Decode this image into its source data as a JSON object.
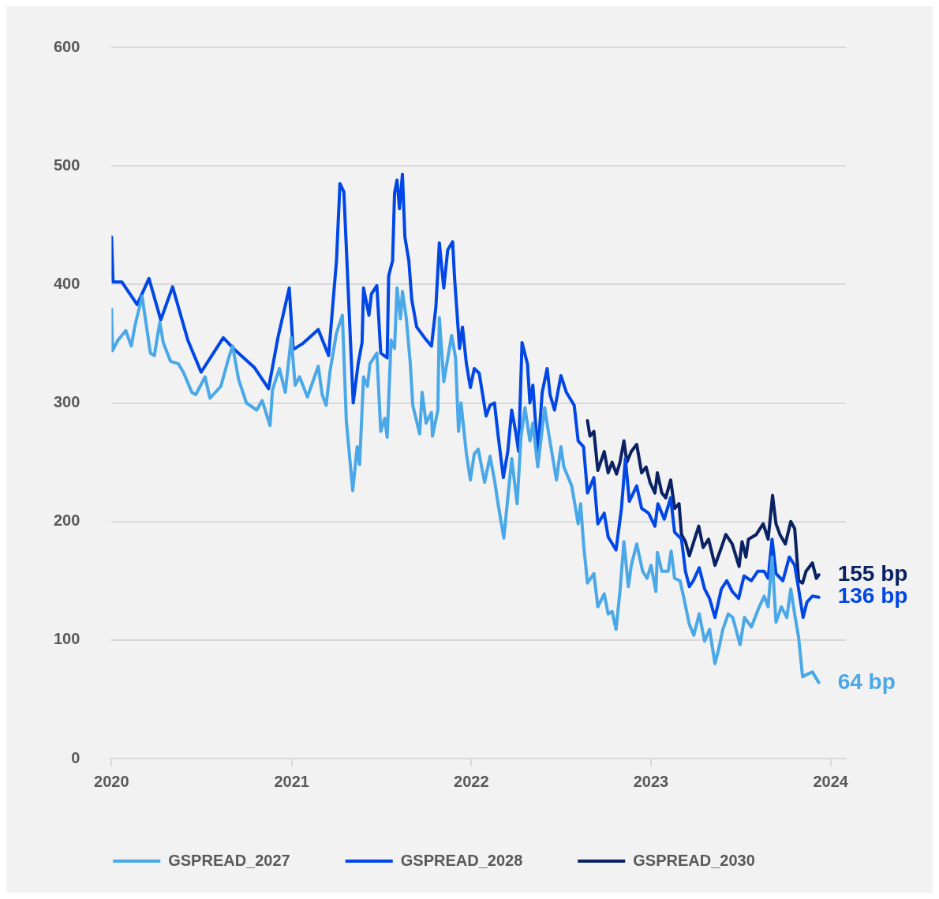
{
  "chart_data": {
    "type": "line",
    "xlim": [
      "2020-01-01",
      "2024-02-01"
    ],
    "xticks": [
      "2020",
      "2021",
      "2022",
      "2023",
      "2024"
    ],
    "ylim": [
      0,
      600
    ],
    "yticks": [
      0,
      100,
      200,
      300,
      400,
      500,
      600
    ],
    "grid": "y",
    "legend": "bottom",
    "marker": "none",
    "line_style": "solid",
    "annotations": [
      {
        "text": "155 bp",
        "x": "2023-12-08",
        "y": 155
      },
      {
        "text": "136 bp",
        "x": "2023-12-08",
        "y": 136
      },
      {
        "text": "64 bp",
        "x": "2023-12-08",
        "y": 64
      }
    ],
    "series": [
      {
        "name": "GSPREAD_2027",
        "color": "#4aa8e8",
        "x": [
          "2020-01-01",
          "2020-01-03",
          "2020-01-14",
          "2020-01-30",
          "2020-02-10",
          "2020-02-18",
          "2020-03-03",
          "2020-03-20",
          "2020-03-28",
          "2020-04-08",
          "2020-04-15",
          "2020-04-30",
          "2020-05-16",
          "2020-05-27",
          "2020-06-12",
          "2020-06-20",
          "2020-07-09",
          "2020-07-19",
          "2020-08-10",
          "2020-08-26",
          "2020-09-03",
          "2020-09-15",
          "2020-10-01",
          "2020-10-22",
          "2020-11-02",
          "2020-11-18",
          "2020-11-23",
          "2020-12-07",
          "2020-12-19",
          "2020-12-31",
          "2021-01-08",
          "2021-01-17",
          "2021-02-02",
          "2021-02-24",
          "2021-03-04",
          "2021-03-12",
          "2021-03-20",
          "2021-04-02",
          "2021-04-14",
          "2021-04-22",
          "2021-05-05",
          "2021-05-14",
          "2021-05-19",
          "2021-05-27",
          "2021-06-04",
          "2021-06-09",
          "2021-06-23",
          "2021-07-01",
          "2021-07-09",
          "2021-07-14",
          "2021-07-22",
          "2021-07-29",
          "2021-08-03",
          "2021-08-10",
          "2021-08-14",
          "2021-08-22",
          "2021-08-30",
          "2021-09-04",
          "2021-09-18",
          "2021-09-23",
          "2021-10-01",
          "2021-10-12",
          "2021-10-14",
          "2021-10-25",
          "2021-10-28",
          "2021-11-06",
          "2021-11-22",
          "2021-11-30",
          "2021-12-06",
          "2021-12-11",
          "2021-12-22",
          "2021-12-30",
          "2022-01-07",
          "2022-01-15",
          "2022-01-28",
          "2022-02-08",
          "2022-02-17",
          "2022-02-25",
          "2022-03-08",
          "2022-03-24",
          "2022-04-04",
          "2022-04-12",
          "2022-04-20",
          "2022-04-30",
          "2022-05-06",
          "2022-05-16",
          "2022-05-30",
          "2022-06-08",
          "2022-06-23",
          "2022-07-02",
          "2022-07-08",
          "2022-07-24",
          "2022-08-06",
          "2022-08-11",
          "2022-08-17",
          "2022-08-25",
          "2022-09-07",
          "2022-09-15",
          "2022-09-28",
          "2022-10-06",
          "2022-10-14",
          "2022-10-22",
          "2022-10-30",
          "2022-11-07",
          "2022-11-16",
          "2022-11-22",
          "2022-12-03",
          "2022-12-15",
          "2022-12-24",
          "2023-01-01",
          "2023-01-11",
          "2023-01-14",
          "2023-01-23",
          "2023-02-05",
          "2023-02-11",
          "2023-02-18",
          "2023-03-01",
          "2023-03-09",
          "2023-03-20",
          "2023-03-29",
          "2023-04-09",
          "2023-04-20",
          "2023-04-30",
          "2023-05-11",
          "2023-05-19",
          "2023-05-27",
          "2023-06-07",
          "2023-06-16",
          "2023-07-01",
          "2023-07-10",
          "2023-07-24",
          "2023-08-09",
          "2023-08-19",
          "2023-08-27",
          "2023-09-04",
          "2023-09-12",
          "2023-09-23",
          "2023-10-04",
          "2023-10-12",
          "2023-10-21",
          "2023-10-28",
          "2023-11-05",
          "2023-11-14",
          "2023-11-25",
          "2023-12-08"
        ],
        "values": [
          379,
          344,
          353,
          361,
          348,
          366,
          390,
          342,
          340,
          368,
          351,
          335,
          333,
          325,
          309,
          307,
          322,
          304,
          314,
          338,
          348,
          320,
          300,
          294,
          302,
          281,
          311,
          329,
          309,
          355,
          315,
          322,
          305,
          331,
          307,
          298,
          327,
          359,
          374,
          285,
          226,
          263,
          248,
          322,
          314,
          333,
          342,
          276,
          287,
          271,
          353,
          346,
          397,
          371,
          394,
          371,
          333,
          298,
          274,
          309,
          283,
          292,
          272,
          294,
          372,
          318,
          357,
          338,
          276,
          300,
          257,
          235,
          257,
          261,
          233,
          255,
          235,
          213,
          186,
          253,
          215,
          272,
          296,
          268,
          283,
          246,
          296,
          272,
          235,
          263,
          246,
          230,
          198,
          215,
          181,
          148,
          156,
          128,
          139,
          122,
          124,
          109,
          141,
          183,
          145,
          163,
          181,
          158,
          152,
          163,
          141,
          174,
          158,
          158,
          175,
          152,
          150,
          135,
          113,
          104,
          122,
          99,
          109,
          80,
          93,
          109,
          122,
          119,
          96,
          119,
          111,
          128,
          137,
          128,
          170,
          115,
          128,
          119,
          143,
          119,
          102,
          69,
          71,
          73,
          64
        ]
      },
      {
        "name": "GSPREAD_2028",
        "color": "#0047e6",
        "x": [
          "2020-01-01",
          "2020-01-04",
          "2020-01-22",
          "2020-02-22",
          "2020-03-17",
          "2020-04-10",
          "2020-05-04",
          "2020-06-04",
          "2020-07-01",
          "2020-08-15",
          "2020-09-07",
          "2020-10-17",
          "2020-11-15",
          "2020-12-04",
          "2020-12-27",
          "2021-01-04",
          "2021-01-23",
          "2021-02-24",
          "2021-03-17",
          "2021-04-02",
          "2021-04-09",
          "2021-04-17",
          "2021-05-06",
          "2021-05-16",
          "2021-05-24",
          "2021-05-27",
          "2021-06-07",
          "2021-06-12",
          "2021-06-23",
          "2021-07-01",
          "2021-07-14",
          "2021-07-17",
          "2021-07-25",
          "2021-07-29",
          "2021-08-03",
          "2021-08-08",
          "2021-08-14",
          "2021-08-19",
          "2021-08-27",
          "2021-09-02",
          "2021-09-12",
          "2021-09-28",
          "2021-10-12",
          "2021-10-21",
          "2021-10-28",
          "2021-11-06",
          "2021-11-14",
          "2021-11-24",
          "2021-11-28",
          "2021-12-08",
          "2021-12-14",
          "2021-12-22",
          "2021-12-30",
          "2022-01-07",
          "2022-01-17",
          "2022-01-31",
          "2022-02-08",
          "2022-02-17",
          "2022-02-24",
          "2022-03-07",
          "2022-03-16",
          "2022-03-24",
          "2022-04-01",
          "2022-04-07",
          "2022-04-14",
          "2022-04-25",
          "2022-04-30",
          "2022-05-06",
          "2022-05-16",
          "2022-05-25",
          "2022-06-04",
          "2022-06-10",
          "2022-06-19",
          "2022-07-02",
          "2022-07-13",
          "2022-07-29",
          "2022-08-06",
          "2022-08-17",
          "2022-08-25",
          "2022-09-07",
          "2022-09-15",
          "2022-09-28",
          "2022-10-06",
          "2022-10-22",
          "2022-11-02",
          "2022-11-10",
          "2022-11-18",
          "2022-12-03",
          "2022-12-13",
          "2022-12-27",
          "2023-01-09",
          "2023-01-15",
          "2023-01-28",
          "2023-02-10",
          "2023-02-18",
          "2023-03-04",
          "2023-03-12",
          "2023-03-20",
          "2023-03-28",
          "2023-04-09",
          "2023-04-20",
          "2023-04-30",
          "2023-05-11",
          "2023-05-24",
          "2023-06-04",
          "2023-06-15",
          "2023-06-28",
          "2023-07-09",
          "2023-07-24",
          "2023-08-06",
          "2023-08-19",
          "2023-08-27",
          "2023-09-04",
          "2023-09-12",
          "2023-09-26",
          "2023-10-09",
          "2023-10-20",
          "2023-10-28",
          "2023-11-06",
          "2023-11-14",
          "2023-11-25",
          "2023-12-08"
        ],
        "values": [
          440,
          402,
          402,
          383,
          405,
          370,
          398,
          353,
          326,
          355,
          345,
          330,
          312,
          355,
          397,
          345,
          350,
          362,
          340,
          420,
          485,
          478,
          300,
          333,
          351,
          397,
          374,
          392,
          399,
          342,
          338,
          407,
          420,
          477,
          488,
          464,
          493,
          440,
          420,
          387,
          364,
          355,
          348,
          381,
          435,
          397,
          429,
          436,
          405,
          346,
          364,
          333,
          313,
          329,
          325,
          289,
          298,
          300,
          274,
          237,
          259,
          294,
          276,
          259,
          351,
          333,
          300,
          315,
          257,
          309,
          329,
          307,
          294,
          323,
          309,
          298,
          268,
          263,
          224,
          237,
          198,
          207,
          187,
          176,
          211,
          253,
          217,
          230,
          211,
          207,
          196,
          215,
          202,
          220,
          191,
          185,
          158,
          145,
          150,
          161,
          143,
          135,
          119,
          143,
          150,
          141,
          135,
          154,
          150,
          158,
          158,
          152,
          185,
          156,
          150,
          170,
          163,
          143,
          119,
          132,
          137,
          136
        ]
      },
      {
        "name": "GSPREAD_2030",
        "color": "#0a2263",
        "x": [
          "2022-08-25",
          "2022-08-30",
          "2022-09-07",
          "2022-09-15",
          "2022-09-28",
          "2022-10-06",
          "2022-10-14",
          "2022-10-23",
          "2022-10-30",
          "2022-11-07",
          "2022-11-13",
          "2022-11-22",
          "2022-12-03",
          "2022-12-13",
          "2022-12-22",
          "2022-12-30",
          "2023-01-09",
          "2023-01-14",
          "2023-01-23",
          "2023-01-31",
          "2023-02-10",
          "2023-02-18",
          "2023-02-27",
          "2023-03-04",
          "2023-03-12",
          "2023-03-20",
          "2023-03-29",
          "2023-04-08",
          "2023-04-17",
          "2023-04-28",
          "2023-05-11",
          "2023-05-24",
          "2023-06-02",
          "2023-06-15",
          "2023-06-29",
          "2023-07-05",
          "2023-07-13",
          "2023-07-18",
          "2023-08-03",
          "2023-08-17",
          "2023-08-27",
          "2023-09-05",
          "2023-09-12",
          "2023-09-20",
          "2023-10-01",
          "2023-10-12",
          "2023-10-20",
          "2023-10-28",
          "2023-11-05",
          "2023-11-12",
          "2023-11-25",
          "2023-12-03",
          "2023-12-08"
        ],
        "values": [
          285,
          272,
          276,
          243,
          259,
          241,
          250,
          240,
          250,
          268,
          250,
          259,
          265,
          241,
          246,
          233,
          224,
          241,
          224,
          220,
          235,
          211,
          215,
          189,
          183,
          171,
          183,
          196,
          178,
          185,
          163,
          178,
          189,
          181,
          162,
          183,
          170,
          185,
          189,
          198,
          185,
          222,
          198,
          189,
          181,
          200,
          194,
          150,
          148,
          158,
          165,
          152,
          155
        ]
      }
    ]
  }
}
